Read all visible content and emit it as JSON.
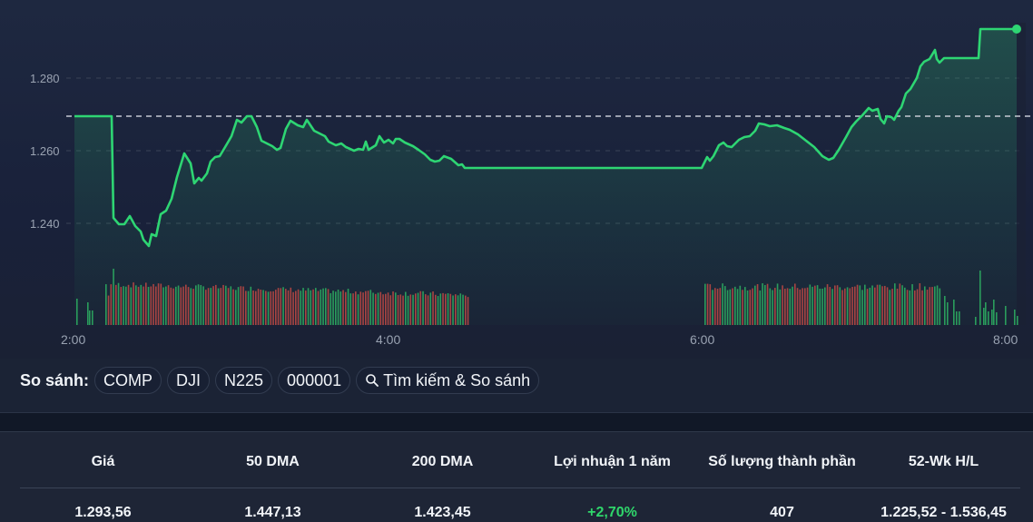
{
  "chart_data": {
    "type": "line",
    "title": "",
    "xlabel": "",
    "ylabel": "",
    "x_ticks": [
      "2:00",
      "4:00",
      "6:00",
      "8:00"
    ],
    "y_ticks": [
      "1.240",
      "1.260",
      "1.280"
    ],
    "ylim": [
      1232,
      1296
    ],
    "reference_line": 1269.5,
    "grid": true,
    "line_color": "#2ed573",
    "volume_colors": {
      "up": "#2a9d5c",
      "down": "#a94442"
    },
    "series": [
      {
        "name": "Price",
        "points": [
          [
            "2:00",
            1269.5
          ],
          [
            "2:25",
            1269.5
          ],
          [
            "2:26",
            1241.5
          ],
          [
            "2:30",
            1239.5
          ],
          [
            "2:35",
            1241.5
          ],
          [
            "2:40",
            1236.5
          ],
          [
            "2:45",
            1234
          ],
          [
            "2:50",
            1237.5
          ],
          [
            "2:58",
            1242
          ],
          [
            "3:05",
            1250
          ],
          [
            "3:12",
            1259.5
          ],
          [
            "3:18",
            1251
          ],
          [
            "3:25",
            1255
          ],
          [
            "3:32",
            1258
          ],
          [
            "3:40",
            1264
          ],
          [
            "3:47",
            1269.5
          ],
          [
            "3:55",
            1262
          ],
          [
            "4:00",
            1260.5
          ],
          [
            "4:05",
            1266
          ],
          [
            "4:10",
            1268.5
          ],
          [
            "4:15",
            1267
          ],
          [
            "4:22",
            1266.5
          ],
          [
            "4:30",
            1262.5
          ],
          [
            "4:40",
            1260
          ],
          [
            "4:50",
            1264
          ],
          [
            "5:00",
            1262
          ],
          [
            "5:10",
            1258
          ],
          [
            "5:17",
            1256.5
          ],
          [
            "5:23",
            1255
          ],
          [
            "5:30",
            1255
          ],
          [
            "5:45",
            1255
          ],
          [
            "6:00",
            1255
          ],
          [
            "6:05",
            1259.5
          ],
          [
            "6:12",
            1262.5
          ],
          [
            "6:20",
            1264.5
          ],
          [
            "6:30",
            1267.5
          ],
          [
            "6:40",
            1267
          ],
          [
            "6:50",
            1263
          ],
          [
            "6:58",
            1258.5
          ],
          [
            "7:05",
            1260
          ],
          [
            "7:12",
            1268
          ],
          [
            "7:18",
            1271.5
          ],
          [
            "7:22",
            1267.5
          ],
          [
            "7:30",
            1273
          ],
          [
            "7:40",
            1285
          ],
          [
            "7:45",
            1288
          ],
          [
            "7:50",
            1285.5
          ],
          [
            "7:55",
            1285.5
          ],
          [
            "7:57",
            1293.5
          ],
          [
            "8:05",
            1293.5
          ]
        ]
      }
    ],
    "last_value": 1293.56
  },
  "compare": {
    "label": "So sánh:",
    "chips": [
      "COMP",
      "DJI",
      "N225",
      "000001"
    ],
    "search_label": "Tìm kiếm & So sánh"
  },
  "stats": {
    "headers": [
      "Giá",
      "50 DMA",
      "200 DMA",
      "Lợi nhuận 1 năm",
      "Số lượng thành phần",
      "52-Wk H/L"
    ],
    "values": [
      "1.293,56",
      "1.447,13",
      "1.423,45",
      "+2,70%",
      "407",
      "1.225,52 - 1.536,45"
    ]
  }
}
